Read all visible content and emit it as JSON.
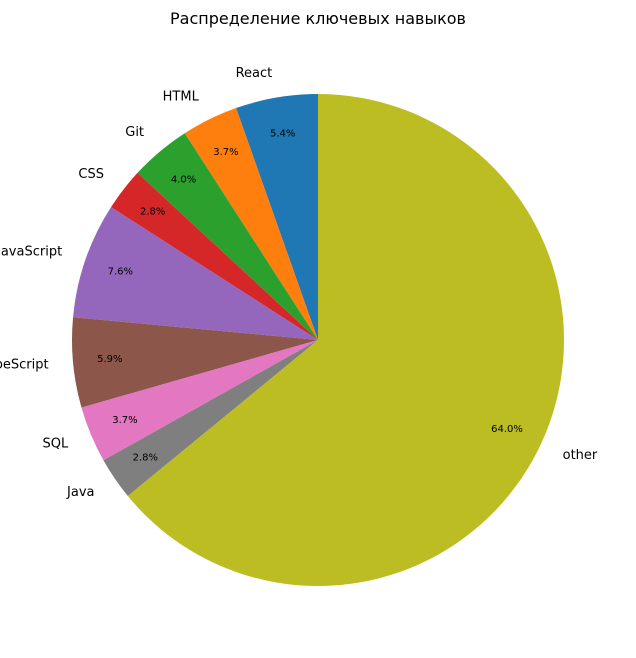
{
  "chart_data": {
    "type": "pie",
    "title": "Распределение ключевых навыков",
    "start_angle_deg": 90,
    "direction": "counterclockwise",
    "slices": [
      {
        "label": "React",
        "value": 5.4,
        "pct_label": "5.4%",
        "color": "#1f77b4"
      },
      {
        "label": "HTML",
        "value": 3.7,
        "pct_label": "3.7%",
        "color": "#ff7f0e"
      },
      {
        "label": "Git",
        "value": 4.0,
        "pct_label": "4.0%",
        "color": "#2ca02c"
      },
      {
        "label": "CSS",
        "value": 2.8,
        "pct_label": "2.8%",
        "color": "#d62728"
      },
      {
        "label": "JavaScript",
        "value": 7.6,
        "pct_label": "7.6%",
        "color": "#9467bd"
      },
      {
        "label": "TypeScript",
        "value": 5.9,
        "pct_label": "5.9%",
        "color": "#8c564b"
      },
      {
        "label": "SQL",
        "value": 3.7,
        "pct_label": "3.7%",
        "color": "#e377c2"
      },
      {
        "label": "Java",
        "value": 2.8,
        "pct_label": "2.8%",
        "color": "#7f7f7f"
      },
      {
        "label": "other",
        "value": 64.0,
        "pct_label": "64.0%",
        "color": "#bcbd22"
      }
    ]
  }
}
